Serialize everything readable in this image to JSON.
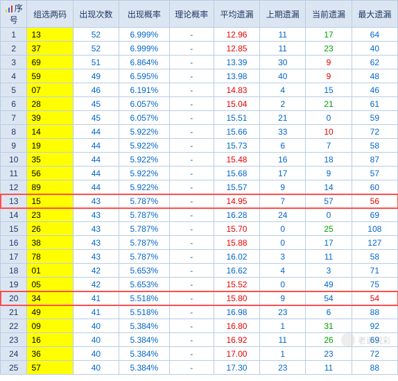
{
  "header_icon": "chart-icon",
  "columns": [
    {
      "label": "序号",
      "width": "36"
    },
    {
      "label": "组选两码",
      "width": "62"
    },
    {
      "label": "出现次数",
      "width": "62"
    },
    {
      "label": "出现概率",
      "width": "68"
    },
    {
      "label": "理论概率",
      "width": "60"
    },
    {
      "label": "平均遗漏",
      "width": "62"
    },
    {
      "label": "上期遗漏",
      "width": "62"
    },
    {
      "label": "当前遗漏",
      "width": "62"
    },
    {
      "label": "最大遗漏",
      "width": "62"
    }
  ],
  "highlight_rows": [
    13,
    20
  ],
  "row_highlight_color": "#ff4d4d",
  "rows": [
    {
      "seq": 1,
      "code": "13",
      "count": 52,
      "prob": "6.999%",
      "theory": "-",
      "avg": "12.96",
      "avg_red": true,
      "prev": 11,
      "cur": 17,
      "cur_c": "green",
      "max": 64
    },
    {
      "seq": 2,
      "code": "37",
      "count": 52,
      "prob": "6.999%",
      "theory": "-",
      "avg": "12.85",
      "avg_red": true,
      "prev": 11,
      "cur": 23,
      "cur_c": "green",
      "max": 40
    },
    {
      "seq": 3,
      "code": "69",
      "count": 51,
      "prob": "6.864%",
      "theory": "-",
      "avg": "13.39",
      "avg_red": false,
      "prev": 30,
      "cur": 9,
      "cur_c": "red",
      "max": 62
    },
    {
      "seq": 4,
      "code": "59",
      "count": 49,
      "prob": "6.595%",
      "theory": "-",
      "avg": "13.98",
      "avg_red": false,
      "prev": 40,
      "cur": 9,
      "cur_c": "red",
      "max": 48
    },
    {
      "seq": 5,
      "code": "07",
      "count": 46,
      "prob": "6.191%",
      "theory": "-",
      "avg": "14.83",
      "avg_red": true,
      "prev": 4,
      "cur": 15,
      "cur_c": "blue",
      "max": 46
    },
    {
      "seq": 6,
      "code": "28",
      "count": 45,
      "prob": "6.057%",
      "theory": "-",
      "avg": "15.04",
      "avg_red": true,
      "prev": 2,
      "cur": 21,
      "cur_c": "green",
      "max": 61
    },
    {
      "seq": 7,
      "code": "39",
      "count": 45,
      "prob": "6.057%",
      "theory": "-",
      "avg": "15.51",
      "avg_red": false,
      "prev": 21,
      "cur": 0,
      "cur_c": "blue",
      "max": 59
    },
    {
      "seq": 8,
      "code": "14",
      "count": 44,
      "prob": "5.922%",
      "theory": "-",
      "avg": "15.66",
      "avg_red": false,
      "prev": 33,
      "cur": 10,
      "cur_c": "red",
      "max": 72
    },
    {
      "seq": 9,
      "code": "19",
      "count": 44,
      "prob": "5.922%",
      "theory": "-",
      "avg": "15.73",
      "avg_red": false,
      "prev": 6,
      "cur": 7,
      "cur_c": "blue",
      "max": 58
    },
    {
      "seq": 10,
      "code": "35",
      "count": 44,
      "prob": "5.922%",
      "theory": "-",
      "avg": "15.48",
      "avg_red": true,
      "prev": 16,
      "cur": 18,
      "cur_c": "blue",
      "max": 87
    },
    {
      "seq": 11,
      "code": "56",
      "count": 44,
      "prob": "5.922%",
      "theory": "-",
      "avg": "15.68",
      "avg_red": false,
      "prev": 17,
      "cur": 9,
      "cur_c": "blue",
      "max": 57
    },
    {
      "seq": 12,
      "code": "89",
      "count": 44,
      "prob": "5.922%",
      "theory": "-",
      "avg": "15.57",
      "avg_red": false,
      "prev": 9,
      "cur": 14,
      "cur_c": "blue",
      "max": 60
    },
    {
      "seq": 13,
      "code": "15",
      "count": 43,
      "prob": "5.787%",
      "theory": "-",
      "avg": "14.95",
      "avg_red": true,
      "prev": 7,
      "cur": 57,
      "cur_c": "blue",
      "max": 56,
      "max_red": true
    },
    {
      "seq": 14,
      "code": "23",
      "count": 43,
      "prob": "5.787%",
      "theory": "-",
      "avg": "16.28",
      "avg_red": false,
      "prev": 24,
      "cur": 0,
      "cur_c": "blue",
      "max": 69
    },
    {
      "seq": 15,
      "code": "26",
      "count": 43,
      "prob": "5.787%",
      "theory": "-",
      "avg": "15.70",
      "avg_red": true,
      "prev": 0,
      "cur": 25,
      "cur_c": "green",
      "max": 108
    },
    {
      "seq": 16,
      "code": "38",
      "count": 43,
      "prob": "5.787%",
      "theory": "-",
      "avg": "15.88",
      "avg_red": true,
      "prev": 0,
      "cur": 17,
      "cur_c": "blue",
      "max": 127
    },
    {
      "seq": 17,
      "code": "78",
      "count": 43,
      "prob": "5.787%",
      "theory": "-",
      "avg": "16.02",
      "avg_red": false,
      "prev": 3,
      "cur": 11,
      "cur_c": "blue",
      "max": 58
    },
    {
      "seq": 18,
      "code": "01",
      "count": 42,
      "prob": "5.653%",
      "theory": "-",
      "avg": "16.62",
      "avg_red": false,
      "prev": 4,
      "cur": 3,
      "cur_c": "blue",
      "max": 71
    },
    {
      "seq": 19,
      "code": "05",
      "count": 42,
      "prob": "5.653%",
      "theory": "-",
      "avg": "15.52",
      "avg_red": true,
      "prev": 0,
      "cur": 49,
      "cur_c": "blue",
      "max": 75
    },
    {
      "seq": 20,
      "code": "34",
      "count": 41,
      "prob": "5.518%",
      "theory": "-",
      "avg": "15.80",
      "avg_red": true,
      "prev": 9,
      "cur": 54,
      "cur_c": "blue",
      "max": 54,
      "max_red": true
    },
    {
      "seq": 21,
      "code": "49",
      "count": 41,
      "prob": "5.518%",
      "theory": "-",
      "avg": "16.98",
      "avg_red": false,
      "prev": 23,
      "cur": 6,
      "cur_c": "blue",
      "max": 88
    },
    {
      "seq": 22,
      "code": "09",
      "count": 40,
      "prob": "5.384%",
      "theory": "-",
      "avg": "16.80",
      "avg_red": true,
      "prev": 1,
      "cur": 31,
      "cur_c": "green",
      "max": 92
    },
    {
      "seq": 23,
      "code": "16",
      "count": 40,
      "prob": "5.384%",
      "theory": "-",
      "avg": "16.92",
      "avg_red": true,
      "prev": 11,
      "cur": 26,
      "cur_c": "green",
      "max": 69
    },
    {
      "seq": 24,
      "code": "36",
      "count": 40,
      "prob": "5.384%",
      "theory": "-",
      "avg": "17.00",
      "avg_red": true,
      "prev": 1,
      "cur": 23,
      "cur_c": "blue",
      "max": 72
    },
    {
      "seq": 25,
      "code": "57",
      "count": 40,
      "prob": "5.384%",
      "theory": "-",
      "avg": "17.30",
      "avg_red": false,
      "prev": 23,
      "cur": 11,
      "cur_c": "blue",
      "max": 88
    }
  ],
  "watermark": {
    "text": "老谢说彩"
  }
}
